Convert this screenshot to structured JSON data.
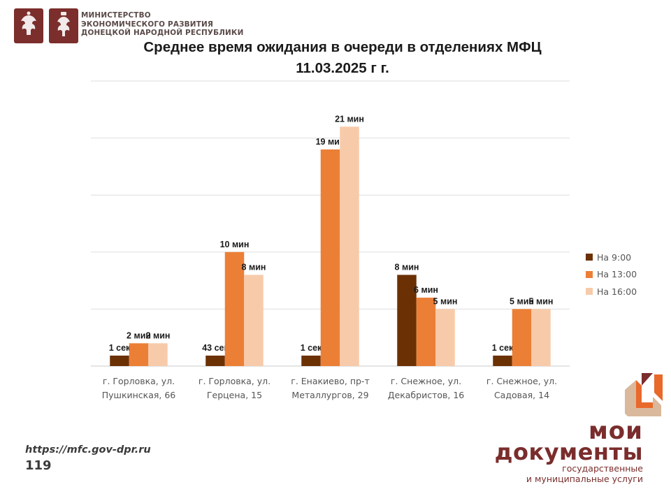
{
  "header": {
    "ministry_lines": [
      "МИНИСТЕРСТВО",
      "ЭКОНОМИЧЕСКОГО РАЗВИТИЯ",
      "ДОНЕЦКОЙ НАРОДНОЙ РЕСПУБЛИКИ"
    ],
    "emblem_icons": [
      "coat-of-arms-icon",
      "double-headed-eagle-icon"
    ]
  },
  "chart_data": {
    "type": "bar",
    "title": "Среднее время ожидания в очереди в отделениях МФЦ",
    "subtitle": "11.03.2025 г г.",
    "xlabel": "",
    "ylabel": "",
    "unit": "minutes",
    "ylim": [
      0,
      25
    ],
    "grid": true,
    "legend_position": "right",
    "categories": [
      [
        "г. Горловка, ул.",
        "Пушкинская, 66"
      ],
      [
        "г. Горловка, ул.",
        "Герцена, 15"
      ],
      [
        "г. Енакиево, пр-т",
        "Металлургов, 29"
      ],
      [
        "г. Снежное, ул.",
        "Декабристов, 16"
      ],
      [
        "г. Снежное, ул.",
        "Садовая, 14"
      ]
    ],
    "series": [
      {
        "name": "На 9:00",
        "color": "#6b3104",
        "values": [
          0.017,
          0.717,
          0.017,
          8,
          0.017
        ],
        "labels": [
          "1 сек",
          "43 сек",
          "1 сек",
          "8 мин",
          "1 сек"
        ]
      },
      {
        "name": "На 13:00",
        "color": "#ec7f36",
        "values": [
          2,
          10,
          19,
          6,
          5
        ],
        "labels": [
          "2 мин",
          "10 мин",
          "19 мин",
          "6 мин",
          "5 мин"
        ]
      },
      {
        "name": "На 16:00",
        "color": "#f7cbaa",
        "values": [
          2,
          8,
          21,
          5,
          5
        ],
        "labels": [
          "2 мин",
          "8 мин",
          "21 мин",
          "5 мин",
          "5 мин"
        ]
      }
    ]
  },
  "footer": {
    "url": "https://mfc.gov-dpr.ru",
    "page_number": "119"
  },
  "brand": {
    "line1": "мои",
    "line2": "документы",
    "line3": "государственные",
    "line4": "и муниципальные услуги",
    "logo_icon": "moi-dokumenty-logo-icon",
    "color": "#7a2d2c"
  }
}
